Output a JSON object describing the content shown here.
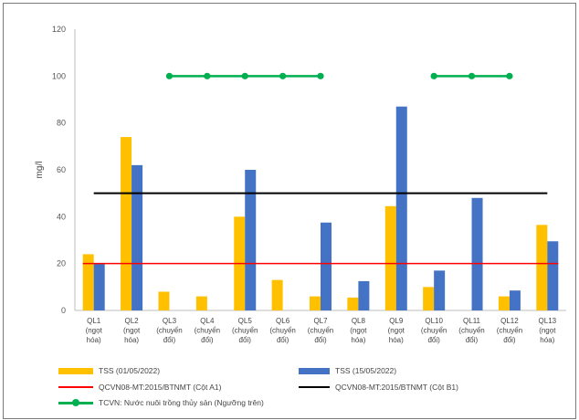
{
  "chart_data": {
    "type": "bar",
    "ylabel": "mg/l",
    "ylim": [
      0,
      120
    ],
    "yticks": [
      0,
      20,
      40,
      60,
      80,
      100,
      120
    ],
    "grid": false,
    "categories": [
      [
        "QL1",
        "(ngọt",
        "hóa)"
      ],
      [
        "QL2",
        "(ngọt",
        "hóa)"
      ],
      [
        "QL3",
        "(chuyển",
        "đổi)"
      ],
      [
        "QL4",
        "(chuyển",
        "đổi)"
      ],
      [
        "QL5",
        "(chuyển",
        "đổi)"
      ],
      [
        "QL6",
        "(chuyển",
        "đổi)"
      ],
      [
        "QL7",
        "(chuyển",
        "đổi)"
      ],
      [
        "QL8",
        "(ngọt",
        "hóa)"
      ],
      [
        "QL9",
        "(ngọt",
        "hóa)"
      ],
      [
        "QL10",
        "(chuyển",
        "đổi)"
      ],
      [
        "QL11",
        "(chuyển",
        "đổi)"
      ],
      [
        "QL12",
        "(chuyển",
        "đổi)"
      ],
      [
        "QL13",
        "(ngọt",
        "hóa)"
      ]
    ],
    "series": [
      {
        "name": "TSS (01/05/2022)",
        "color": "#ffc000",
        "values": [
          24,
          74,
          8,
          6,
          40,
          13,
          6,
          5.5,
          44.5,
          10,
          0,
          6,
          36.5
        ]
      },
      {
        "name": "TSS (15/05/2022)",
        "color": "#4472c4",
        "values": [
          20,
          62,
          0,
          0,
          60,
          0,
          37.5,
          12.5,
          87,
          17,
          48,
          8.5,
          29.5
        ]
      }
    ],
    "reference_lines": [
      {
        "name": "QCVN08-MT:2015/BTNMT (Cột A1)",
        "color": "#ff0000",
        "value": 20
      },
      {
        "name": "QCVN08-MT:2015/BTNMT (Cột B1)",
        "color": "#000000",
        "value": 50
      }
    ],
    "threshold_series": {
      "name": "TCVN: Nước nuôi trồng thủy sản (Ngưỡng trên)",
      "color": "#00b050",
      "value": 100,
      "segments": [
        [
          2,
          6
        ],
        [
          9,
          11
        ]
      ]
    },
    "legend": [
      {
        "label": "TSS (01/05/2022)",
        "kind": "bar",
        "color": "#ffc000"
      },
      {
        "label": "TSS (15/05/2022)",
        "kind": "bar",
        "color": "#4472c4"
      },
      {
        "label": "QCVN08-MT:2015/BTNMT (Cột A1)",
        "kind": "line",
        "color": "#ff0000"
      },
      {
        "label": "QCVN08-MT:2015/BTNMT (Cột B1)",
        "kind": "line",
        "color": "#000000"
      },
      {
        "label": "TCVN: Nước nuôi trồng thủy sản (Ngưỡng trên)",
        "kind": "marker-line",
        "color": "#00b050"
      }
    ],
    "legend_position": "bottom"
  }
}
